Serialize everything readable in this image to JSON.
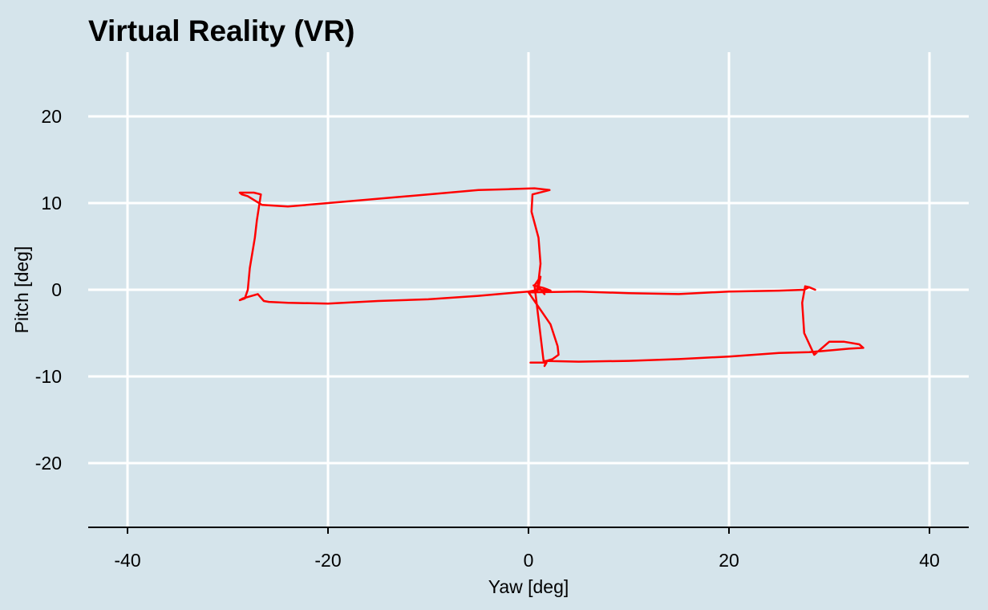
{
  "chart_data": {
    "type": "line",
    "title": "Virtual Reality (VR)",
    "xlabel": "Yaw [deg]",
    "ylabel": "Pitch [deg]",
    "xlim": [
      -44,
      44
    ],
    "ylim": [
      -27.5,
      27.5
    ],
    "xticks": [
      -40,
      -20,
      0,
      20,
      40
    ],
    "yticks": [
      -20,
      -10,
      0,
      10,
      20
    ],
    "xtick_labels": [
      "-40",
      "-20",
      "0",
      "20",
      "40"
    ],
    "ytick_labels": [
      "-20",
      "-10",
      "0",
      "10",
      "20"
    ],
    "grid": true,
    "line_color": "#ff0000",
    "background_color": "#d5e4eb",
    "series": [
      {
        "x": [
          0.2,
          1.8,
          1.6,
          1.8,
          2.4,
          3.0,
          2.9,
          2.2,
          0.0,
          5.0,
          10.0,
          15.0,
          20.0,
          25.0,
          27.5,
          28.0,
          28.6,
          28.0,
          27.6,
          27.3,
          27.5,
          28.5,
          30.0,
          31.5,
          33.0,
          33.4,
          32.0,
          30.0,
          28.0,
          25.0,
          20.0,
          15.0,
          10.0,
          5.0,
          1.5,
          0.6,
          1.2,
          1.0,
          1.6,
          1.1,
          0.8,
          1.0,
          1.2,
          1.0,
          0.3,
          0.4,
          2.1,
          0.6,
          -2.0,
          -5.0,
          -10.0,
          -15.0,
          -20.0,
          -24.0,
          -26.6,
          -28.0,
          -28.6,
          -28.8,
          -27.4,
          -26.7,
          -27.1,
          -27.3,
          -27.8,
          -28.0,
          -28.3,
          -28.8,
          -28.5,
          -27.0,
          -26.4,
          -25.9,
          -24.0,
          -20.0,
          -15.0,
          -10.0,
          -5.0,
          -1.0,
          0.0,
          1.0,
          2.2,
          1.5,
          0.5
        ],
        "y": [
          -8.4,
          -8.4,
          -8.8,
          -8.2,
          -8.0,
          -7.5,
          -6.5,
          -4.0,
          -0.3,
          -0.2,
          -0.4,
          -0.5,
          -0.2,
          -0.1,
          0.0,
          0.3,
          0.0,
          0.3,
          0.4,
          -1.5,
          -5.0,
          -7.5,
          -6.0,
          -6.0,
          -6.3,
          -6.7,
          -6.8,
          -7.0,
          -7.2,
          -7.3,
          -7.7,
          -8.0,
          -8.2,
          -8.3,
          -8.2,
          0.5,
          1.5,
          0.3,
          -0.5,
          0.2,
          -0.2,
          1.0,
          3.0,
          6.0,
          9.0,
          11.0,
          11.5,
          11.7,
          11.6,
          11.5,
          11.0,
          10.5,
          10.0,
          9.6,
          9.8,
          10.8,
          11.0,
          11.2,
          11.2,
          11.0,
          8.0,
          6.0,
          2.5,
          0.0,
          -1.0,
          -1.2,
          -1.0,
          -0.5,
          -1.3,
          -1.4,
          -1.5,
          -1.6,
          -1.3,
          -1.1,
          -0.7,
          -0.3,
          -0.2,
          0.0,
          -0.1,
          0.2,
          0.5
        ]
      }
    ]
  }
}
